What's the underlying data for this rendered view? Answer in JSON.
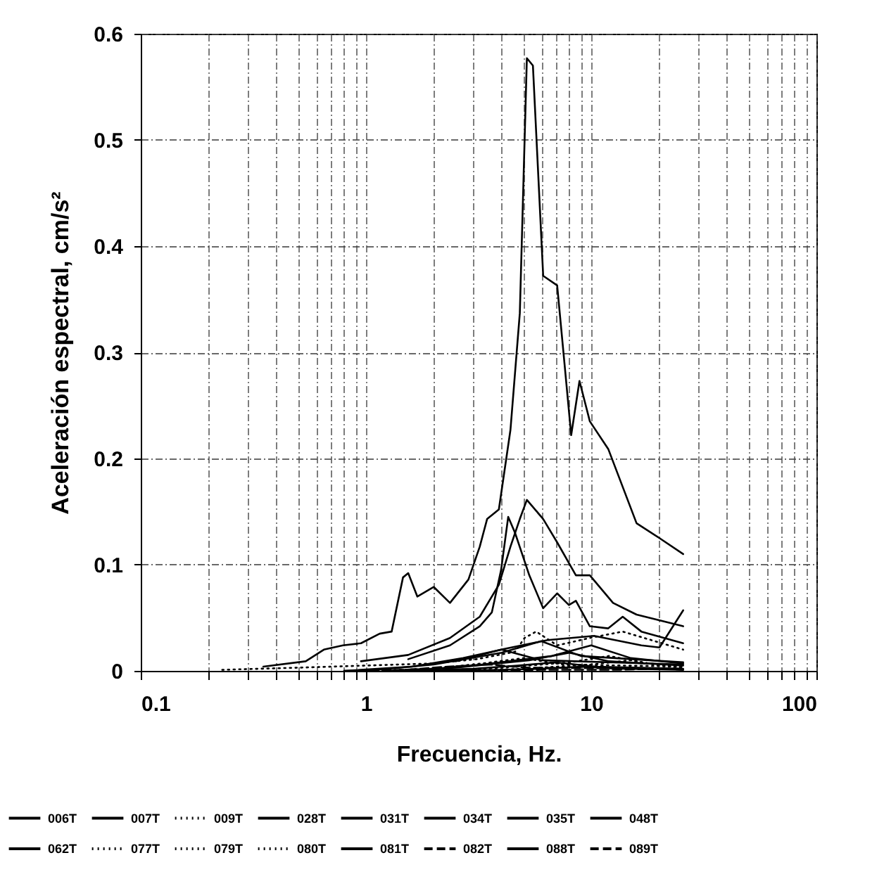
{
  "chart_data": {
    "type": "line",
    "xlabel": "Frecuencia, Hz.",
    "ylabel": "Aceleración espectral, cm/s²",
    "log": "x",
    "grid": true,
    "legend": "bottom",
    "marker": "none",
    "xlim": [
      0.1,
      100
    ],
    "ylim": [
      0,
      0.6
    ],
    "xticks": [
      0.1,
      {
        "value": 0.2,
        "label": null
      },
      {
        "value": 0.3,
        "label": null
      },
      {
        "value": 0.4,
        "label": null
      },
      {
        "value": 0.5,
        "label": null
      },
      {
        "value": 0.6,
        "label": null
      },
      {
        "value": 0.7,
        "label": null
      },
      {
        "value": 0.8,
        "label": null
      },
      {
        "value": 0.9,
        "label": null
      },
      1,
      {
        "value": 2,
        "label": null
      },
      {
        "value": 3,
        "label": null
      },
      {
        "value": 4,
        "label": null
      },
      {
        "value": 5,
        "label": null
      },
      {
        "value": 6,
        "label": null
      },
      {
        "value": 7,
        "label": null
      },
      {
        "value": 8,
        "label": null
      },
      {
        "value": 9,
        "label": null
      },
      10,
      {
        "value": 20,
        "label": null
      },
      {
        "value": 30,
        "label": null
      },
      {
        "value": 40,
        "label": null
      },
      {
        "value": 50,
        "label": null
      },
      {
        "value": 60,
        "label": null
      },
      {
        "value": 70,
        "label": null
      },
      {
        "value": 80,
        "label": null
      },
      {
        "value": 90,
        "label": null
      },
      100
    ],
    "yticks": [
      0,
      0.1,
      0.2,
      0.3,
      0.4,
      0.5,
      0.6
    ],
    "series": [
      {
        "name": "006T",
        "color": "#000000",
        "line_style": "solid",
        "x": [
          0.35,
          0.54,
          0.65,
          0.79,
          0.95,
          1.15,
          1.3,
          1.46,
          1.54,
          1.69,
          2.0,
          2.36,
          2.85,
          3.2,
          3.45,
          3.89,
          4.38,
          4.82,
          5.18,
          5.51,
          6.12,
          7.06,
          8.15,
          8.87,
          9.86,
          11.9,
          15.9,
          20.1,
          25.6
        ],
        "values": [
          0.004,
          0.009,
          0.02,
          0.024,
          0.026,
          0.035,
          0.037,
          0.088,
          0.092,
          0.07,
          0.079,
          0.064,
          0.086,
          0.117,
          0.143,
          0.152,
          0.227,
          0.337,
          0.577,
          0.57,
          0.372,
          0.363,
          0.222,
          0.273,
          0.235,
          0.209,
          0.139,
          0.125,
          0.11
        ]
      },
      {
        "name": "007T",
        "color": "#000000",
        "line_style": "solid",
        "x": [
          0.95,
          1.54,
          2.36,
          3.2,
          3.89,
          4.38,
          4.82,
          5.18,
          6.12,
          7.06,
          8.55,
          9.86,
          12.5,
          15.9,
          25.6
        ],
        "values": [
          0.009,
          0.015,
          0.031,
          0.051,
          0.081,
          0.117,
          0.143,
          0.161,
          0.143,
          0.121,
          0.09,
          0.09,
          0.064,
          0.053,
          0.042
        ]
      },
      {
        "name": "009T",
        "color": "#000000",
        "line_style": "dotted",
        "x": [
          0.23,
          0.5,
          1.0,
          2.0,
          3.1,
          4.59,
          5.06,
          5.7,
          7.06,
          9.86,
          13.8,
          25.6
        ],
        "values": [
          0.001,
          0.003,
          0.005,
          0.007,
          0.011,
          0.018,
          0.031,
          0.037,
          0.024,
          0.031,
          0.037,
          0.02
        ]
      },
      {
        "name": "028T",
        "color": "#000000",
        "line_style": "solid",
        "x": [
          1.54,
          2.36,
          3.2,
          3.62,
          3.98,
          4.28,
          4.59,
          5.31,
          6.12,
          7.06,
          7.96,
          8.55,
          9.86,
          11.9,
          13.8,
          16.7,
          25.6
        ],
        "values": [
          0.011,
          0.024,
          0.042,
          0.055,
          0.095,
          0.145,
          0.13,
          0.09,
          0.059,
          0.073,
          0.062,
          0.066,
          0.042,
          0.04,
          0.051,
          0.037,
          0.026
        ]
      },
      {
        "name": "031T",
        "color": "#000000",
        "line_style": "solid",
        "x": [
          2.5,
          3.98,
          6.41,
          10.3,
          16.7,
          20.1,
          25.6
        ],
        "values": [
          0.009,
          0.02,
          0.029,
          0.033,
          0.024,
          0.022,
          0.057
        ]
      },
      {
        "name": "034T",
        "color": "#000000",
        "line_style": "solid",
        "x": [
          1.0,
          2.0,
          4.0,
          6.0,
          9.0,
          25.6
        ],
        "values": [
          0.0,
          0.006,
          0.017,
          0.028,
          0.014,
          0.008
        ]
      },
      {
        "name": "035T",
        "color": "#000000",
        "line_style": "solid",
        "x": [
          1.5,
          3.0,
          6.7,
          10.0,
          15.0,
          25.6
        ],
        "values": [
          0.0,
          0.005,
          0.014,
          0.024,
          0.012,
          0.007
        ]
      },
      {
        "name": "048T",
        "color": "#000000",
        "line_style": "solid",
        "x": [
          0.8,
          1.6,
          2.7,
          4.0,
          6.0,
          25.6
        ],
        "values": [
          0.0,
          0.004,
          0.012,
          0.02,
          0.01,
          0.006
        ]
      },
      {
        "name": "062T",
        "color": "#000000",
        "line_style": "solid",
        "x": [
          1.2,
          2.5,
          5.3,
          8.0,
          12.0,
          25.6
        ],
        "values": [
          0.0,
          0.003,
          0.01,
          0.017,
          0.009,
          0.005
        ]
      },
      {
        "name": "077T",
        "color": "#000000",
        "line_style": "dotted",
        "x": [
          2.0,
          4.0,
          8.0,
          12.0,
          18.0,
          25.6
        ],
        "values": [
          0.0,
          0.003,
          0.008,
          0.014,
          0.007,
          0.004
        ]
      },
      {
        "name": "079T",
        "color": "#000000",
        "line_style": "dotted",
        "x": [
          1.0,
          2.0,
          3.3,
          5.0,
          7.5,
          25.6
        ],
        "values": [
          0.0,
          0.002,
          0.007,
          0.012,
          0.006,
          0.004
        ]
      },
      {
        "name": "080T",
        "color": "#000000",
        "line_style": "dotted",
        "x": [
          2.5,
          5.0,
          10.0,
          15.0,
          20.0,
          25.6
        ],
        "values": [
          0.0,
          0.002,
          0.006,
          0.01,
          0.005,
          0.003
        ]
      },
      {
        "name": "081T",
        "color": "#000000",
        "line_style": "solid",
        "x": [
          1.5,
          3.0,
          4.7,
          7.0,
          10.5,
          25.6
        ],
        "values": [
          0.0,
          0.002,
          0.005,
          0.008,
          0.004,
          0.002
        ]
      },
      {
        "name": "082T",
        "color": "#000000",
        "line_style": "dashed",
        "x": [
          0.8,
          1.5,
          2.3,
          3.5,
          5.3,
          25.6
        ],
        "values": [
          0.0,
          0.001,
          0.004,
          0.006,
          0.003,
          0.002
        ]
      },
      {
        "name": "088T",
        "color": "#000000",
        "line_style": "solid",
        "x": [
          2.0,
          4.0,
          6.0,
          9.0,
          13.5,
          25.6
        ],
        "values": [
          0.0,
          0.001,
          0.002,
          0.004,
          0.002,
          0.001
        ]
      },
      {
        "name": "089T",
        "color": "#000000",
        "line_style": "dashed",
        "x": [
          3.0,
          6.0,
          13.0,
          20.0,
          25.6
        ],
        "values": [
          0.0,
          0.001,
          0.001,
          0.002,
          0.001
        ]
      }
    ]
  }
}
